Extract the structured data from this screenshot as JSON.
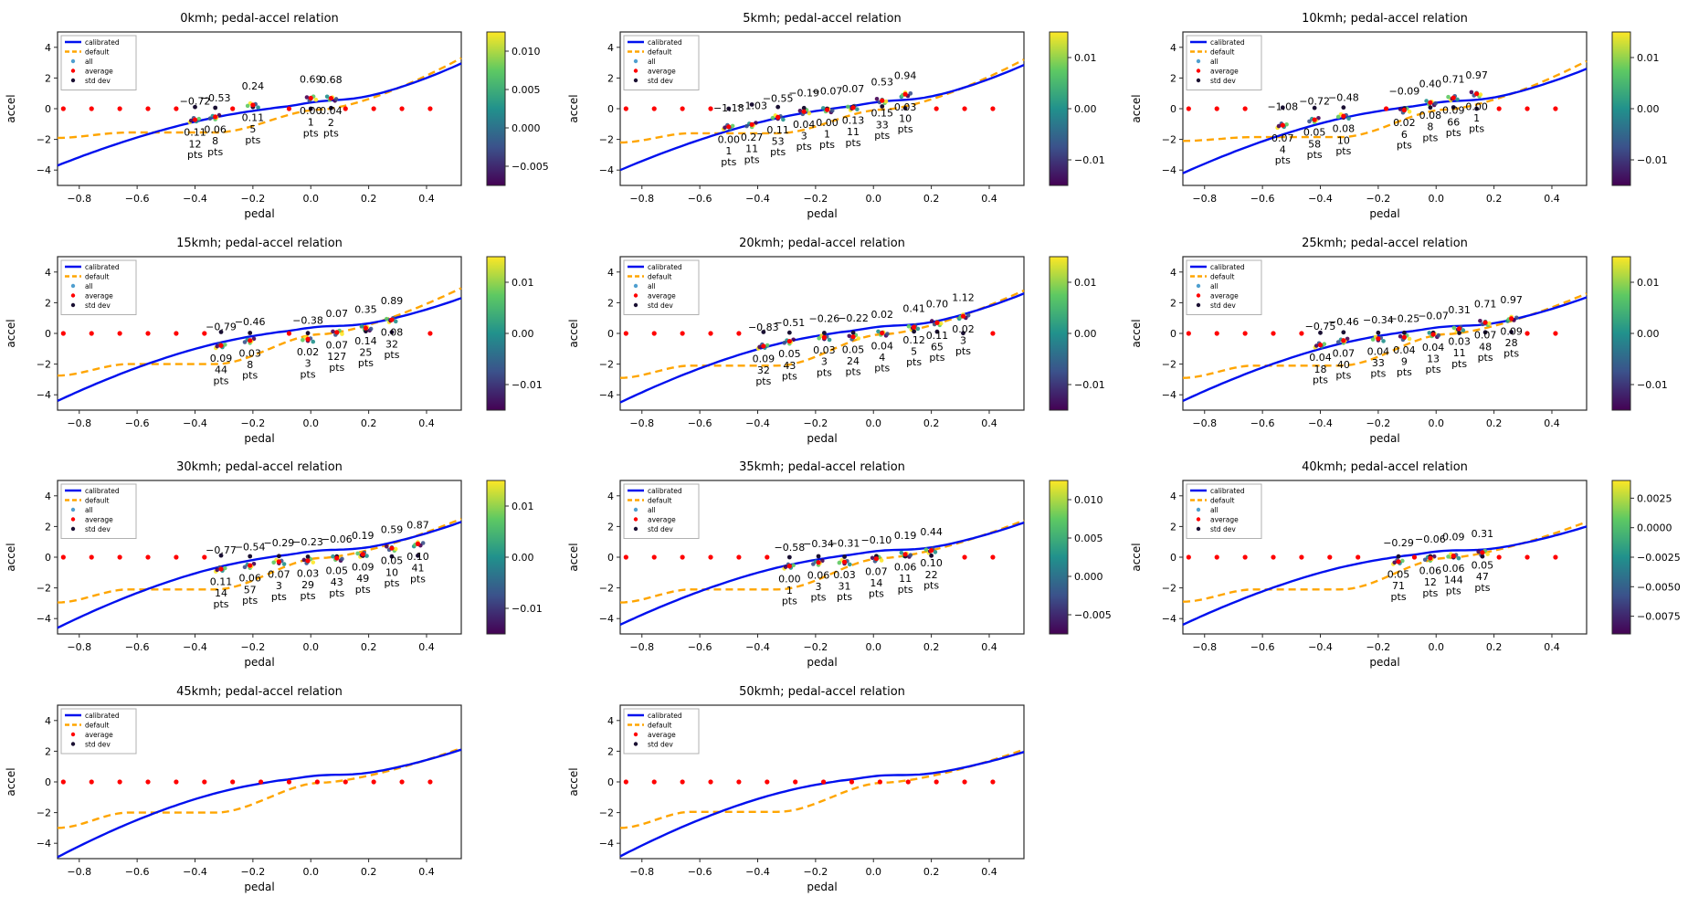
{
  "figure": {
    "xlabel": "pedal",
    "ylabel": "accel",
    "x_ticks": [
      -0.8,
      -0.6,
      -0.4,
      -0.2,
      0.0,
      0.2,
      0.4
    ],
    "y_ticks": [
      4,
      2,
      0,
      -2,
      -4
    ],
    "colors": {
      "calibrated": "#0010ee",
      "default": "#ffa500",
      "all_dot": "#4f9fcf",
      "average_dot": "#ff0000",
      "std_dot": "#1a1033",
      "annotation_avg": "#ff0000",
      "annotation_std": "#000000",
      "annotation_pts": "#008000"
    },
    "viridis": [
      "#fde725",
      "#5ec962",
      "#21918c",
      "#3b528b",
      "#440154"
    ]
  },
  "chart_data": [
    {
      "type": "line+scatter",
      "title": "0kmh; pedal-accel relation",
      "row": 0,
      "col": 0,
      "legend": [
        "calibrated",
        "default",
        "all",
        "average",
        "std dev"
      ],
      "colorbar": {
        "ticks": [
          "0.010",
          "0.005",
          "0.000",
          "-0.005"
        ],
        "range": [
          -0.0075,
          0.0125
        ]
      },
      "curves": {
        "cal_start": -3.7,
        "cal_end": 2.95,
        "def_start": -1.9,
        "def_flat": -1.55,
        "def_end": 3.3
      },
      "points": [
        {
          "pedal": -0.4,
          "avg": -0.72,
          "std": 0.11,
          "pts": 12
        },
        {
          "pedal": -0.33,
          "avg": -0.53,
          "std": 0.06,
          "pts": 8
        },
        {
          "pedal": -0.2,
          "avg": 0.24,
          "std": 0.11,
          "pts": 5
        },
        {
          "pedal": 0.0,
          "avg": 0.69,
          "std": 0.0,
          "pts": 1
        },
        {
          "pedal": 0.07,
          "avg": 0.68,
          "std": 0.04,
          "pts": 2
        }
      ]
    },
    {
      "type": "line+scatter",
      "title": "5kmh; pedal-accel relation",
      "row": 0,
      "col": 1,
      "legend": [
        "calibrated",
        "default",
        "all",
        "average",
        "std dev"
      ],
      "colorbar": {
        "ticks": [
          "0.01",
          "0.00",
          "-0.01"
        ],
        "range": [
          -0.015,
          0.015
        ]
      },
      "curves": {
        "cal_start": -4.0,
        "cal_end": 2.85,
        "def_start": -2.2,
        "def_flat": -1.6,
        "def_end": 3.2
      },
      "points": [
        {
          "pedal": -0.5,
          "avg": -1.18,
          "std": 0.0,
          "pts": 1
        },
        {
          "pedal": -0.42,
          "avg": -1.03,
          "std": 0.27,
          "pts": 11
        },
        {
          "pedal": -0.33,
          "avg": -0.55,
          "std": 0.11,
          "pts": 53
        },
        {
          "pedal": -0.24,
          "avg": -0.19,
          "std": 0.04,
          "pts": 3
        },
        {
          "pedal": -0.16,
          "avg": -0.07,
          "std": 0.0,
          "pts": 1
        },
        {
          "pedal": -0.07,
          "avg": 0.07,
          "std": 0.13,
          "pts": 11
        },
        {
          "pedal": 0.03,
          "avg": 0.53,
          "std": 0.15,
          "pts": 33
        },
        {
          "pedal": 0.11,
          "avg": 0.94,
          "std": 0.03,
          "pts": 10
        }
      ]
    },
    {
      "type": "line+scatter",
      "title": "10kmh; pedal-accel relation",
      "row": 0,
      "col": 2,
      "legend": [
        "calibrated",
        "default",
        "all",
        "average",
        "std dev"
      ],
      "colorbar": {
        "ticks": [
          "0.01",
          "0.00",
          "-0.01"
        ],
        "range": [
          -0.015,
          0.015
        ]
      },
      "curves": {
        "cal_start": -4.2,
        "cal_end": 2.6,
        "def_start": -2.1,
        "def_flat": -1.85,
        "def_end": 3.1
      },
      "points": [
        {
          "pedal": -0.53,
          "avg": -1.08,
          "std": 0.07,
          "pts": 4
        },
        {
          "pedal": -0.42,
          "avg": -0.72,
          "std": 0.05,
          "pts": 58
        },
        {
          "pedal": -0.32,
          "avg": -0.48,
          "std": 0.08,
          "pts": 10
        },
        {
          "pedal": -0.11,
          "avg": -0.09,
          "std": 0.02,
          "pts": 6
        },
        {
          "pedal": -0.02,
          "avg": 0.4,
          "std": 0.08,
          "pts": 8
        },
        {
          "pedal": 0.06,
          "avg": 0.71,
          "std": 0.09,
          "pts": 66
        },
        {
          "pedal": 0.14,
          "avg": 0.97,
          "std": 0.0,
          "pts": 1
        }
      ]
    },
    {
      "type": "line+scatter",
      "title": "15kmh; pedal-accel relation",
      "row": 1,
      "col": 0,
      "legend": [
        "calibrated",
        "default",
        "all",
        "average",
        "std dev"
      ],
      "colorbar": {
        "ticks": [
          "0.01",
          "0.00",
          "-0.01"
        ],
        "range": [
          -0.015,
          0.015
        ]
      },
      "curves": {
        "cal_start": -4.4,
        "cal_end": 2.3,
        "def_start": -2.75,
        "def_flat": -2.0,
        "def_end": 2.95
      },
      "points": [
        {
          "pedal": -0.31,
          "avg": -0.79,
          "std": 0.09,
          "pts": 44
        },
        {
          "pedal": -0.21,
          "avg": -0.46,
          "std": 0.03,
          "pts": 8
        },
        {
          "pedal": -0.01,
          "avg": -0.38,
          "std": 0.02,
          "pts": 3
        },
        {
          "pedal": 0.09,
          "avg": 0.07,
          "std": 0.07,
          "pts": 127
        },
        {
          "pedal": 0.19,
          "avg": 0.35,
          "std": 0.14,
          "pts": 25
        },
        {
          "pedal": 0.28,
          "avg": 0.89,
          "std": 0.08,
          "pts": 32
        }
      ]
    },
    {
      "type": "line+scatter",
      "title": "20kmh; pedal-accel relation",
      "row": 1,
      "col": 1,
      "legend": [
        "calibrated",
        "default",
        "all",
        "average",
        "std dev"
      ],
      "colorbar": {
        "ticks": [
          "0.01",
          "0.00",
          "-0.01"
        ],
        "range": [
          -0.015,
          0.015
        ]
      },
      "curves": {
        "cal_start": -4.5,
        "cal_end": 2.6,
        "def_start": -2.9,
        "def_flat": -2.1,
        "def_end": 2.8
      },
      "points": [
        {
          "pedal": -0.38,
          "avg": -0.83,
          "std": 0.09,
          "pts": 32
        },
        {
          "pedal": -0.29,
          "avg": -0.51,
          "std": 0.05,
          "pts": 43
        },
        {
          "pedal": -0.17,
          "avg": -0.26,
          "std": 0.03,
          "pts": 3
        },
        {
          "pedal": -0.07,
          "avg": -0.22,
          "std": 0.05,
          "pts": 24
        },
        {
          "pedal": 0.03,
          "avg": 0.02,
          "std": 0.04,
          "pts": 4
        },
        {
          "pedal": 0.14,
          "avg": 0.41,
          "std": 0.12,
          "pts": 5
        },
        {
          "pedal": 0.22,
          "avg": 0.7,
          "std": 0.11,
          "pts": 65
        },
        {
          "pedal": 0.31,
          "avg": 1.12,
          "std": 0.02,
          "pts": 3
        }
      ]
    },
    {
      "type": "line+scatter",
      "title": "25kmh; pedal-accel relation",
      "row": 1,
      "col": 2,
      "legend": [
        "calibrated",
        "default",
        "all",
        "average",
        "std dev"
      ],
      "colorbar": {
        "ticks": [
          "0.01",
          "0.00",
          "-0.01"
        ],
        "range": [
          -0.015,
          0.015
        ]
      },
      "curves": {
        "cal_start": -4.4,
        "cal_end": 2.35,
        "def_start": -2.9,
        "def_flat": -2.1,
        "def_end": 2.6
      },
      "points": [
        {
          "pedal": -0.4,
          "avg": -0.75,
          "std": 0.04,
          "pts": 18
        },
        {
          "pedal": -0.32,
          "avg": -0.46,
          "std": 0.07,
          "pts": 40
        },
        {
          "pedal": -0.2,
          "avg": -0.34,
          "std": 0.04,
          "pts": 33
        },
        {
          "pedal": -0.11,
          "avg": -0.25,
          "std": 0.04,
          "pts": 9
        },
        {
          "pedal": -0.01,
          "avg": -0.07,
          "std": 0.04,
          "pts": 13
        },
        {
          "pedal": 0.08,
          "avg": 0.31,
          "std": 0.03,
          "pts": 11
        },
        {
          "pedal": 0.17,
          "avg": 0.71,
          "std": 0.07,
          "pts": 48
        },
        {
          "pedal": 0.26,
          "avg": 0.97,
          "std": 0.09,
          "pts": 28
        }
      ]
    },
    {
      "type": "line+scatter",
      "title": "30kmh; pedal-accel relation",
      "row": 2,
      "col": 0,
      "legend": [
        "calibrated",
        "default",
        "all",
        "average",
        "std dev"
      ],
      "colorbar": {
        "ticks": [
          "0.01",
          "0.00",
          "-0.01"
        ],
        "range": [
          -0.015,
          0.015
        ]
      },
      "curves": {
        "cal_start": -4.6,
        "cal_end": 2.3,
        "def_start": -2.95,
        "def_flat": -2.1,
        "def_end": 2.5
      },
      "points": [
        {
          "pedal": -0.31,
          "avg": -0.77,
          "std": 0.11,
          "pts": 14
        },
        {
          "pedal": -0.21,
          "avg": -0.54,
          "std": 0.06,
          "pts": 57
        },
        {
          "pedal": -0.11,
          "avg": -0.29,
          "std": 0.07,
          "pts": 3
        },
        {
          "pedal": -0.01,
          "avg": -0.23,
          "std": 0.03,
          "pts": 29
        },
        {
          "pedal": 0.09,
          "avg": -0.06,
          "std": 0.05,
          "pts": 43
        },
        {
          "pedal": 0.18,
          "avg": 0.19,
          "std": 0.09,
          "pts": 49
        },
        {
          "pedal": 0.28,
          "avg": 0.59,
          "std": 0.05,
          "pts": 10
        },
        {
          "pedal": 0.37,
          "avg": 0.87,
          "std": 0.1,
          "pts": 41
        }
      ]
    },
    {
      "type": "line+scatter",
      "title": "35kmh; pedal-accel relation",
      "row": 2,
      "col": 1,
      "legend": [
        "calibrated",
        "default",
        "all",
        "average",
        "std dev"
      ],
      "colorbar": {
        "ticks": [
          "0.010",
          "0.005",
          "0.000",
          "-0.005"
        ],
        "range": [
          -0.0075,
          0.0125
        ]
      },
      "curves": {
        "cal_start": -4.4,
        "cal_end": 2.25,
        "def_start": -2.95,
        "def_flat": -2.1,
        "def_end": 2.4
      },
      "points": [
        {
          "pedal": -0.29,
          "avg": -0.58,
          "std": 0.0,
          "pts": 1
        },
        {
          "pedal": -0.19,
          "avg": -0.34,
          "std": 0.06,
          "pts": 3
        },
        {
          "pedal": -0.1,
          "avg": -0.31,
          "std": 0.03,
          "pts": 31
        },
        {
          "pedal": 0.01,
          "avg": -0.1,
          "std": 0.07,
          "pts": 14
        },
        {
          "pedal": 0.11,
          "avg": 0.19,
          "std": 0.06,
          "pts": 11
        },
        {
          "pedal": 0.2,
          "avg": 0.44,
          "std": 0.1,
          "pts": 22
        }
      ]
    },
    {
      "type": "line+scatter",
      "title": "40kmh; pedal-accel relation",
      "row": 2,
      "col": 2,
      "legend": [
        "calibrated",
        "default",
        "all",
        "average",
        "std dev"
      ],
      "colorbar": {
        "ticks": [
          "0.0025",
          "0.0000",
          "-0.0025",
          "-0.0050",
          "-0.0075"
        ],
        "range": [
          -0.009,
          0.004
        ]
      },
      "curves": {
        "cal_start": -4.4,
        "cal_end": 2.0,
        "def_start": -2.9,
        "def_flat": -2.1,
        "def_end": 2.3
      },
      "points": [
        {
          "pedal": -0.13,
          "avg": -0.29,
          "std": 0.05,
          "pts": 71
        },
        {
          "pedal": -0.02,
          "avg": -0.06,
          "std": 0.06,
          "pts": 12
        },
        {
          "pedal": 0.06,
          "avg": 0.09,
          "std": 0.06,
          "pts": 144
        },
        {
          "pedal": 0.16,
          "avg": 0.31,
          "std": 0.05,
          "pts": 47
        }
      ]
    },
    {
      "type": "line+scatter",
      "title": "45kmh; pedal-accel relation",
      "row": 3,
      "col": 0,
      "legend": [
        "calibrated",
        "default",
        "average",
        "std dev"
      ],
      "colorbar": null,
      "curves": {
        "cal_start": -4.9,
        "cal_end": 2.1,
        "def_start": -3.0,
        "def_flat": -2.0,
        "def_end": 2.2
      },
      "points": []
    },
    {
      "type": "line+scatter",
      "title": "50kmh; pedal-accel relation",
      "row": 3,
      "col": 1,
      "legend": [
        "calibrated",
        "default",
        "average",
        "std dev"
      ],
      "colorbar": null,
      "curves": {
        "cal_start": -4.85,
        "cal_end": 1.95,
        "def_start": -3.0,
        "def_flat": -1.95,
        "def_end": 2.1
      },
      "points": []
    }
  ]
}
